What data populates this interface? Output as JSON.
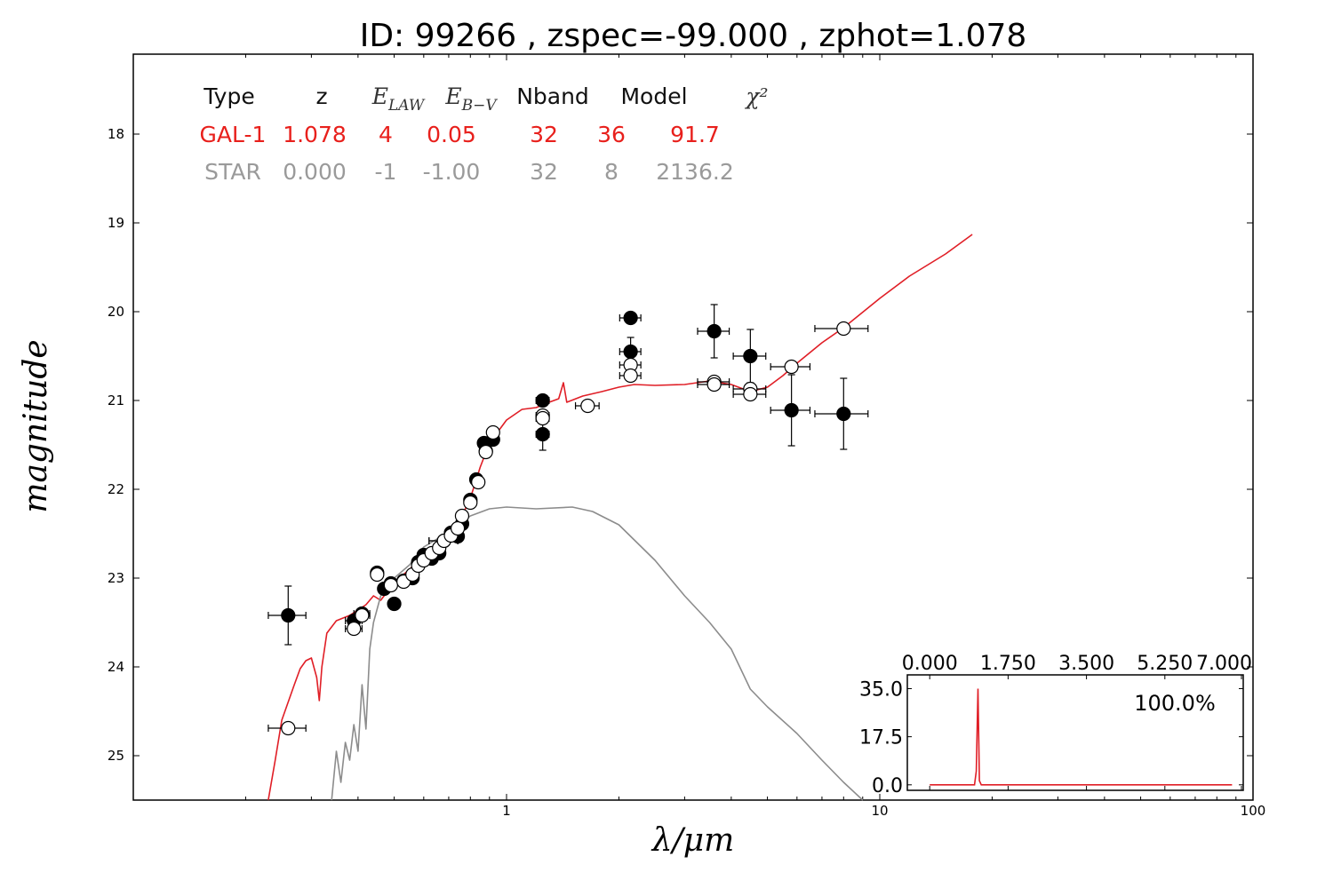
{
  "chart_data": {
    "type": "scatter",
    "title": "ID:  99266 , zspec=-99.000 , zphot=1.078",
    "xlabel": "λ/μm",
    "ylabel": "magnitude",
    "xscale": "log",
    "xlim": [
      0.1,
      100
    ],
    "ylim": [
      25.5,
      17.1
    ],
    "x_tick_labels": [
      {
        "value": 1,
        "label": "1"
      },
      {
        "value": 10,
        "label": "10"
      },
      {
        "value": 100,
        "label": "100"
      }
    ],
    "y_tick_labels": [
      {
        "value": 18,
        "label": "18"
      },
      {
        "value": 19,
        "label": "19"
      },
      {
        "value": 20,
        "label": "20"
      },
      {
        "value": 21,
        "label": "21"
      },
      {
        "value": 22,
        "label": "22"
      },
      {
        "value": 23,
        "label": "23"
      },
      {
        "value": 24,
        "label": "24"
      },
      {
        "value": 25,
        "label": "25"
      }
    ],
    "table": {
      "header": [
        "Type",
        "z",
        "E_LAW",
        "E_B−V",
        "Nband",
        "Model",
        "χ²"
      ],
      "rows": [
        {
          "values": [
            "GAL-1",
            "1.078",
            "4",
            "0.05",
            "32",
            "36",
            "91.7"
          ],
          "color": "#e8201c"
        },
        {
          "values": [
            "STAR",
            "0.000",
            "-1",
            "-1.00",
            "32",
            "8",
            "2136.2"
          ],
          "color": "#9a9a9a"
        }
      ]
    },
    "series": [
      {
        "name": "GAL-1",
        "kind": "line",
        "color": "#e01e26",
        "points": [
          [
            0.23,
            25.5
          ],
          [
            0.24,
            25.05
          ],
          [
            0.25,
            24.6
          ],
          [
            0.27,
            24.2
          ],
          [
            0.28,
            24.02
          ],
          [
            0.29,
            23.93
          ],
          [
            0.3,
            23.9
          ],
          [
            0.31,
            24.12
          ],
          [
            0.315,
            24.38
          ],
          [
            0.32,
            24.0
          ],
          [
            0.33,
            23.62
          ],
          [
            0.35,
            23.48
          ],
          [
            0.38,
            23.42
          ],
          [
            0.42,
            23.3
          ],
          [
            0.44,
            23.2
          ],
          [
            0.46,
            23.25
          ],
          [
            0.48,
            23.15
          ],
          [
            0.5,
            23.05
          ],
          [
            0.55,
            22.9
          ],
          [
            0.6,
            22.75
          ],
          [
            0.65,
            22.6
          ],
          [
            0.7,
            22.5
          ],
          [
            0.75,
            22.35
          ],
          [
            0.8,
            22.1
          ],
          [
            0.85,
            21.75
          ],
          [
            0.9,
            21.48
          ],
          [
            1.0,
            21.22
          ],
          [
            1.1,
            21.1
          ],
          [
            1.2,
            21.08
          ],
          [
            1.3,
            21.02
          ],
          [
            1.38,
            20.98
          ],
          [
            1.42,
            20.8
          ],
          [
            1.45,
            21.02
          ],
          [
            1.6,
            20.95
          ],
          [
            1.8,
            20.9
          ],
          [
            2.0,
            20.85
          ],
          [
            2.2,
            20.82
          ],
          [
            2.5,
            20.83
          ],
          [
            3.0,
            20.82
          ],
          [
            3.5,
            20.78
          ],
          [
            4.0,
            20.82
          ],
          [
            4.5,
            20.9
          ],
          [
            5.0,
            20.85
          ],
          [
            5.5,
            20.72
          ],
          [
            6.0,
            20.58
          ],
          [
            7.0,
            20.35
          ],
          [
            8.0,
            20.18
          ],
          [
            10.0,
            19.85
          ],
          [
            12.0,
            19.6
          ],
          [
            15.0,
            19.35
          ],
          [
            17.7,
            19.13
          ]
        ]
      },
      {
        "name": "STAR",
        "kind": "line",
        "color": "#8c8c8c",
        "points": [
          [
            0.34,
            25.5
          ],
          [
            0.35,
            24.95
          ],
          [
            0.36,
            25.3
          ],
          [
            0.37,
            24.85
          ],
          [
            0.38,
            25.05
          ],
          [
            0.39,
            24.65
          ],
          [
            0.4,
            24.95
          ],
          [
            0.41,
            24.2
          ],
          [
            0.42,
            24.7
          ],
          [
            0.43,
            23.8
          ],
          [
            0.44,
            23.5
          ],
          [
            0.46,
            23.2
          ],
          [
            0.5,
            23.0
          ],
          [
            0.55,
            22.85
          ],
          [
            0.6,
            22.65
          ],
          [
            0.7,
            22.48
          ],
          [
            0.8,
            22.3
          ],
          [
            0.9,
            22.22
          ],
          [
            1.0,
            22.2
          ],
          [
            1.2,
            22.22
          ],
          [
            1.5,
            22.2
          ],
          [
            1.7,
            22.25
          ],
          [
            2.0,
            22.4
          ],
          [
            2.5,
            22.8
          ],
          [
            3.0,
            23.2
          ],
          [
            3.5,
            23.5
          ],
          [
            4.0,
            23.8
          ],
          [
            4.5,
            24.25
          ],
          [
            5.0,
            24.45
          ],
          [
            6.0,
            24.75
          ],
          [
            7.0,
            25.05
          ],
          [
            8.0,
            25.3
          ],
          [
            9.0,
            25.5
          ]
        ]
      },
      {
        "name": "observed",
        "kind": "points",
        "filled": true,
        "color": "#000000",
        "points": [
          {
            "x": 0.26,
            "y": 23.42,
            "xerr": 0.03,
            "yerr": 0.33
          },
          {
            "x": 0.39,
            "y": 23.48,
            "xerr": 0.02,
            "yerr": 0.04
          },
          {
            "x": 0.41,
            "y": 23.4,
            "xerr": 0.02,
            "yerr": 0.04
          },
          {
            "x": 0.45,
            "y": 22.94,
            "xerr": 0.01,
            "yerr": 0.02
          },
          {
            "x": 0.47,
            "y": 23.12,
            "xerr": 0.015,
            "yerr": 0.03
          },
          {
            "x": 0.49,
            "y": 23.06,
            "xerr": 0.015,
            "yerr": 0.03
          },
          {
            "x": 0.5,
            "y": 23.29,
            "xerr": 0.015,
            "yerr": 0.03
          },
          {
            "x": 0.53,
            "y": 23.03,
            "xerr": 0.015,
            "yerr": 0.03
          },
          {
            "x": 0.56,
            "y": 23.0,
            "xerr": 0.015,
            "yerr": 0.03
          },
          {
            "x": 0.58,
            "y": 22.82,
            "xerr": 0.015,
            "yerr": 0.03
          },
          {
            "x": 0.6,
            "y": 22.74,
            "xerr": 0.015,
            "yerr": 0.03
          },
          {
            "x": 0.63,
            "y": 22.78,
            "xerr": 0.015,
            "yerr": 0.03
          },
          {
            "x": 0.66,
            "y": 22.72,
            "xerr": 0.015,
            "yerr": 0.03
          },
          {
            "x": 0.68,
            "y": 22.58,
            "xerr": 0.06,
            "yerr": 0.03
          },
          {
            "x": 0.71,
            "y": 22.49,
            "xerr": 0.015,
            "yerr": 0.03
          },
          {
            "x": 0.74,
            "y": 22.53,
            "xerr": 0.015,
            "yerr": 0.03
          },
          {
            "x": 0.76,
            "y": 22.39,
            "xerr": 0.015,
            "yerr": 0.03
          },
          {
            "x": 0.8,
            "y": 22.12,
            "xerr": 0.015,
            "yerr": 0.03
          },
          {
            "x": 0.83,
            "y": 21.89,
            "xerr": 0.02,
            "yerr": 0.03
          },
          {
            "x": 0.87,
            "y": 21.48,
            "xerr": 0.02,
            "yerr": 0.03
          },
          {
            "x": 0.88,
            "y": 21.57,
            "xerr": 0.02,
            "yerr": 0.03
          },
          {
            "x": 0.92,
            "y": 21.44,
            "xerr": 0.02,
            "yerr": 0.03
          },
          {
            "x": 1.25,
            "y": 21.0,
            "xerr": 0.05,
            "yerr": 0.05
          },
          {
            "x": 1.25,
            "y": 21.38,
            "xerr": 0.05,
            "yerr": 0.18
          },
          {
            "x": 2.15,
            "y": 20.07,
            "xerr": 0.14,
            "yerr": 0.06
          },
          {
            "x": 2.15,
            "y": 20.45,
            "xerr": 0.14,
            "yerr": 0.16
          },
          {
            "x": 3.6,
            "y": 20.22,
            "xerr": 0.35,
            "yerr": 0.3
          },
          {
            "x": 4.5,
            "y": 20.5,
            "xerr": 0.45,
            "yerr": 0.3
          },
          {
            "x": 5.8,
            "y": 21.11,
            "xerr": 0.7,
            "yerr": 0.4
          },
          {
            "x": 8.0,
            "y": 21.15,
            "xerr": 1.3,
            "yerr": 0.4
          }
        ]
      },
      {
        "name": "model",
        "kind": "points",
        "filled": false,
        "color": "#000000",
        "points": [
          {
            "x": 0.26,
            "y": 24.69,
            "xerr": 0.03
          },
          {
            "x": 0.39,
            "y": 23.57,
            "xerr": 0.02
          },
          {
            "x": 0.41,
            "y": 23.42,
            "xerr": 0.02
          },
          {
            "x": 0.45,
            "y": 22.96,
            "xerr": 0.01
          },
          {
            "x": 0.49,
            "y": 23.08,
            "xerr": 0.015
          },
          {
            "x": 0.53,
            "y": 23.04,
            "xerr": 0.015
          },
          {
            "x": 0.56,
            "y": 22.96,
            "xerr": 0.015
          },
          {
            "x": 0.58,
            "y": 22.86,
            "xerr": 0.015
          },
          {
            "x": 0.6,
            "y": 22.8,
            "xerr": 0.015
          },
          {
            "x": 0.63,
            "y": 22.72,
            "xerr": 0.015
          },
          {
            "x": 0.66,
            "y": 22.66,
            "xerr": 0.015
          },
          {
            "x": 0.68,
            "y": 22.58,
            "xerr": 0.06
          },
          {
            "x": 0.71,
            "y": 22.52,
            "xerr": 0.015
          },
          {
            "x": 0.74,
            "y": 22.44,
            "xerr": 0.015
          },
          {
            "x": 0.76,
            "y": 22.3,
            "xerr": 0.015
          },
          {
            "x": 0.8,
            "y": 22.15,
            "xerr": 0.015
          },
          {
            "x": 0.84,
            "y": 21.92,
            "xerr": 0.02
          },
          {
            "x": 0.88,
            "y": 21.58,
            "xerr": 0.02
          },
          {
            "x": 0.92,
            "y": 21.36,
            "xerr": 0.02
          },
          {
            "x": 1.25,
            "y": 21.17,
            "xerr": 0.05
          },
          {
            "x": 1.25,
            "y": 21.2,
            "xerr": 0.05
          },
          {
            "x": 1.65,
            "y": 21.06,
            "xerr": 0.12
          },
          {
            "x": 2.15,
            "y": 20.6,
            "xerr": 0.14
          },
          {
            "x": 2.15,
            "y": 20.72,
            "xerr": 0.14
          },
          {
            "x": 3.6,
            "y": 20.79,
            "xerr": 0.35
          },
          {
            "x": 3.6,
            "y": 20.82,
            "xerr": 0.35
          },
          {
            "x": 4.5,
            "y": 20.87,
            "xerr": 0.45
          },
          {
            "x": 4.5,
            "y": 20.93,
            "xerr": 0.45
          },
          {
            "x": 5.8,
            "y": 20.62,
            "xerr": 0.7
          },
          {
            "x": 8.0,
            "y": 20.19,
            "xerr": 1.3
          }
        ]
      }
    ],
    "inset": {
      "type": "line",
      "color": "#e01e26",
      "xlim": [
        -0.5,
        7.0
      ],
      "ylim": [
        -2.0,
        40.0
      ],
      "x_tick_labels": [
        "0.000",
        "1.750",
        "3.500",
        "5.250",
        "7.000"
      ],
      "x_tick_values": [
        0,
        1.75,
        3.5,
        5.25,
        7.0
      ],
      "y_tick_labels": [
        "35.0",
        "17.5",
        "0.0"
      ],
      "y_tick_values": [
        35.0,
        17.5,
        0.0
      ],
      "annotation": "100.0%",
      "points": [
        [
          0.0,
          0.0
        ],
        [
          1.0,
          0.0
        ],
        [
          1.04,
          5.0
        ],
        [
          1.078,
          35.0
        ],
        [
          1.11,
          1.5
        ],
        [
          1.15,
          0.0
        ],
        [
          6.75,
          0.0
        ]
      ]
    }
  }
}
